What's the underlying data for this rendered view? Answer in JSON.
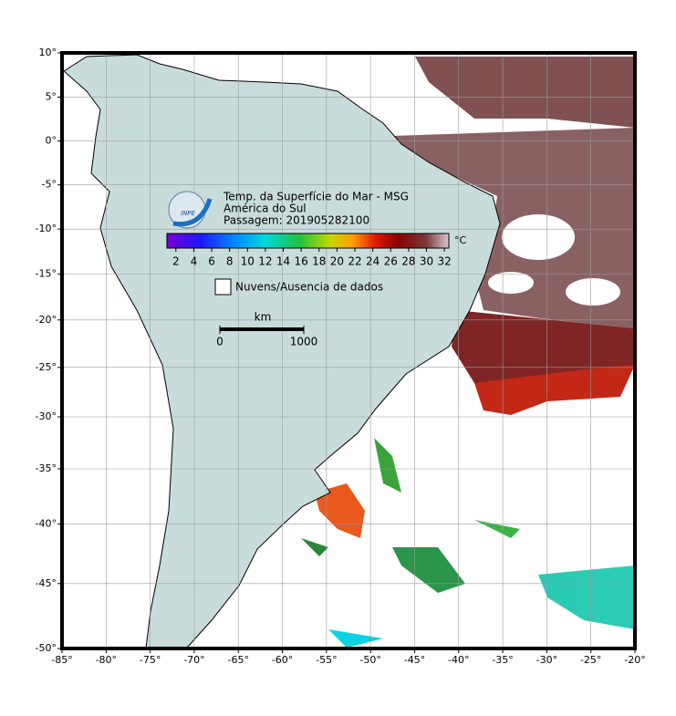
{
  "map": {
    "title": [
      "Temp. da Superfície do Mar - MSG",
      "América do Sul",
      "Passagem: 201905282100"
    ],
    "logo": "INPE",
    "lonlim": [
      -85,
      -20
    ],
    "latlim": [
      -50,
      10
    ],
    "lon_ticks": [
      {
        "value": -85,
        "label": "-85°"
      },
      {
        "value": -80,
        "label": "-80°"
      },
      {
        "value": -75,
        "label": "-75°"
      },
      {
        "value": -70,
        "label": "-70°"
      },
      {
        "value": -65,
        "label": "-65°"
      },
      {
        "value": -60,
        "label": "-60°"
      },
      {
        "value": -55,
        "label": "-55°"
      },
      {
        "value": -50,
        "label": "-50°"
      },
      {
        "value": -45,
        "label": "-45°"
      },
      {
        "value": -40,
        "label": "-40°"
      },
      {
        "value": -35,
        "label": "-35°"
      },
      {
        "value": -30,
        "label": "-30°"
      },
      {
        "value": -25,
        "label": "-25°"
      },
      {
        "value": -20,
        "label": "-20°"
      }
    ],
    "lat_ticks": [
      {
        "value": 10,
        "label": "10°"
      },
      {
        "value": 5,
        "label": "5°"
      },
      {
        "value": 0,
        "label": "0°"
      },
      {
        "value": -5,
        "label": "-5°"
      },
      {
        "value": -10,
        "label": "-10°"
      },
      {
        "value": -15,
        "label": "-15°"
      },
      {
        "value": -20,
        "label": "-20°"
      },
      {
        "value": -25,
        "label": "-25°"
      },
      {
        "value": -30,
        "label": "-30°"
      },
      {
        "value": -35,
        "label": "-35°"
      },
      {
        "value": -40,
        "label": "-40°"
      },
      {
        "value": -45,
        "label": "-45°"
      },
      {
        "value": -50,
        "label": "-50°"
      }
    ],
    "colorbar": {
      "lim": [
        1,
        32.5
      ],
      "ticks": [
        2,
        4,
        6,
        8,
        10,
        12,
        14,
        16,
        18,
        20,
        22,
        24,
        26,
        28,
        30,
        32
      ],
      "unit": "°C"
    },
    "legend": "Nuvens/Ausencia de dados",
    "scale": {
      "unit": "km",
      "ticks": [
        0,
        1000
      ]
    }
  }
}
